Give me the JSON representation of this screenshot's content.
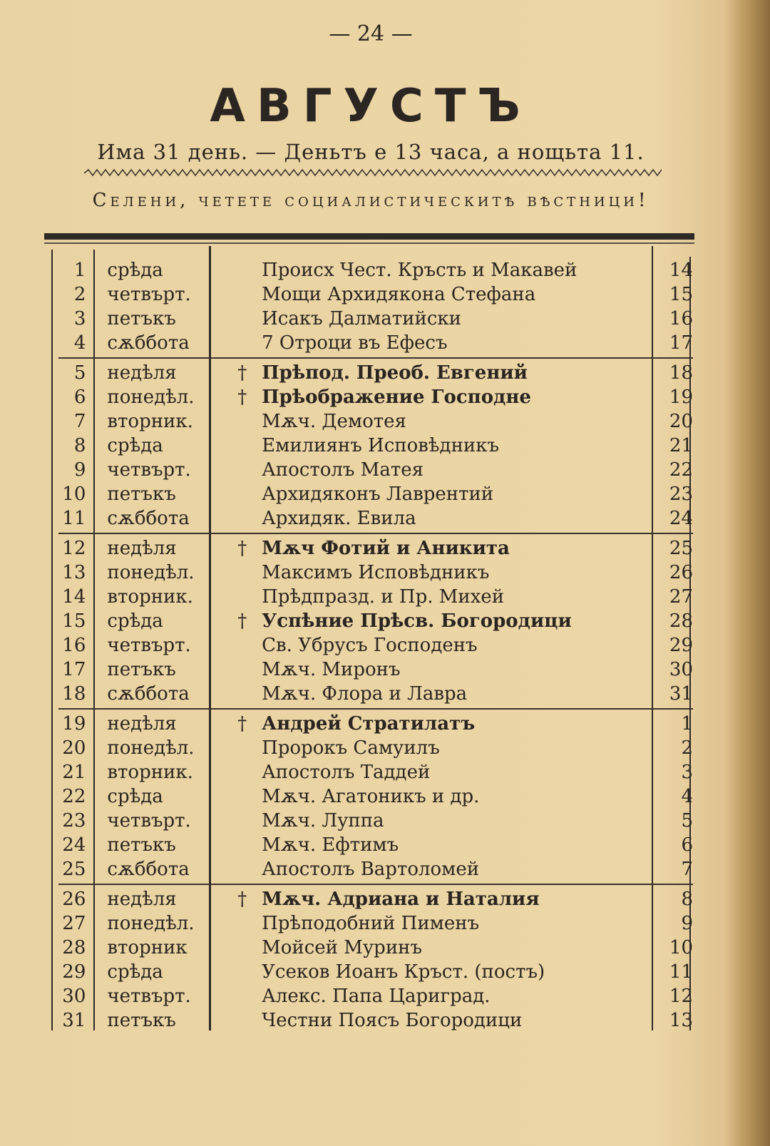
{
  "page_number": "— 24 —",
  "title": "АВГУСТЪ",
  "subtitle": "Има 31 день. — Деньтъ е 13 часа, а нощьта 11.",
  "slogan": "Селени, четете социалистическитѣ вѣстници!",
  "rows": [
    {
      "day": "1",
      "weekday": "срѣда",
      "dagger": "",
      "name": "Происх Чест. Кръсть и Макавей",
      "bold": false,
      "old_day": "14"
    },
    {
      "day": "2",
      "weekday": "четвърт.",
      "dagger": "",
      "name": "Мощи Архидякона Стефана",
      "bold": false,
      "old_day": "15"
    },
    {
      "day": "3",
      "weekday": "петъкъ",
      "dagger": "",
      "name": "Исакъ Далматийски",
      "bold": false,
      "old_day": "16"
    },
    {
      "day": "4",
      "weekday": "сѫббота",
      "dagger": "",
      "name": "7 Отроци въ Ефесъ",
      "bold": false,
      "old_day": "17"
    },
    {
      "day": "5",
      "weekday": "недѣля",
      "dagger": "†",
      "name": "Прѣпод. Преоб. Евгений",
      "bold": true,
      "old_day": "18"
    },
    {
      "day": "6",
      "weekday": "понедѣл.",
      "dagger": "†",
      "name": "Прѣображение Господне",
      "bold": true,
      "old_day": "19"
    },
    {
      "day": "7",
      "weekday": "вторник.",
      "dagger": "",
      "name": "Мѫч. Демотея",
      "bold": false,
      "old_day": "20"
    },
    {
      "day": "8",
      "weekday": "срѣда",
      "dagger": "",
      "name": "Емилиянъ Исповѣдникъ",
      "bold": false,
      "old_day": "21"
    },
    {
      "day": "9",
      "weekday": "четвърт.",
      "dagger": "",
      "name": "Апостолъ Матея",
      "bold": false,
      "old_day": "22"
    },
    {
      "day": "10",
      "weekday": "петъкъ",
      "dagger": "",
      "name": "Архидяконъ Лаврентий",
      "bold": false,
      "old_day": "23"
    },
    {
      "day": "11",
      "weekday": "сѫббота",
      "dagger": "",
      "name": "Архидяк. Евила",
      "bold": false,
      "old_day": "24"
    },
    {
      "day": "12",
      "weekday": "недѣля",
      "dagger": "†",
      "name": "Мѫч Фотий и Аникита",
      "bold": true,
      "old_day": "25"
    },
    {
      "day": "13",
      "weekday": "понедѣл.",
      "dagger": "",
      "name": "Максимъ Исповѣдникъ",
      "bold": false,
      "old_day": "26"
    },
    {
      "day": "14",
      "weekday": "вторник.",
      "dagger": "",
      "name": "Прѣдпразд. и Пр. Михей",
      "bold": false,
      "old_day": "27"
    },
    {
      "day": "15",
      "weekday": "срѣда",
      "dagger": "†",
      "name": "Успѣние Прѣсв. Богородици",
      "bold": true,
      "old_day": "28"
    },
    {
      "day": "16",
      "weekday": "четвърт.",
      "dagger": "",
      "name": "Св. Убрусъ Господенъ",
      "bold": false,
      "old_day": "29"
    },
    {
      "day": "17",
      "weekday": "петъкъ",
      "dagger": "",
      "name": "Мѫч. Миронъ",
      "bold": false,
      "old_day": "30"
    },
    {
      "day": "18",
      "weekday": "сѫббота",
      "dagger": "",
      "name": "Мѫч. Флора и Лавра",
      "bold": false,
      "old_day": "31"
    },
    {
      "day": "19",
      "weekday": "недѣля",
      "dagger": "†",
      "name": "Андрей Стратилатъ",
      "bold": true,
      "old_day": "1"
    },
    {
      "day": "20",
      "weekday": "понедѣл.",
      "dagger": "",
      "name": "Пророкъ Самуилъ",
      "bold": false,
      "old_day": "2"
    },
    {
      "day": "21",
      "weekday": "вторник.",
      "dagger": "",
      "name": "Апостолъ Таддей",
      "bold": false,
      "old_day": "3"
    },
    {
      "day": "22",
      "weekday": "срѣда",
      "dagger": "",
      "name": "Мѫч. Агатоникъ и др.",
      "bold": false,
      "old_day": "4"
    },
    {
      "day": "23",
      "weekday": "четвърт.",
      "dagger": "",
      "name": "Мѫч. Луппа",
      "bold": false,
      "old_day": "5"
    },
    {
      "day": "24",
      "weekday": "петъкъ",
      "dagger": "",
      "name": "Мѫч. Ефтимъ",
      "bold": false,
      "old_day": "6"
    },
    {
      "day": "25",
      "weekday": "сѫббота",
      "dagger": "",
      "name": "Апостолъ Вартоломей",
      "bold": false,
      "old_day": "7"
    },
    {
      "day": "26",
      "weekday": "недѣля",
      "dagger": "†",
      "name": "Мѫч. Адриана и Наталия",
      "bold": true,
      "old_day": "8"
    },
    {
      "day": "27",
      "weekday": "понедѣл.",
      "dagger": "",
      "name": "Прѣподобний Пименъ",
      "bold": false,
      "old_day": "9"
    },
    {
      "day": "28",
      "weekday": "вторник",
      "dagger": "",
      "name": "Мойсей Муринъ",
      "bold": false,
      "old_day": "10"
    },
    {
      "day": "29",
      "weekday": "срѣда",
      "dagger": "",
      "name": "Усеков Иоанъ Кръст. (постъ)",
      "bold": false,
      "old_day": "11"
    },
    {
      "day": "30",
      "weekday": "четвърт.",
      "dagger": "",
      "name": "Алекс. Папа Цариград.",
      "bold": false,
      "old_day": "12"
    },
    {
      "day": "31",
      "weekday": "петъкъ",
      "dagger": "",
      "name": "Честни Поясъ Богородици",
      "bold": false,
      "old_day": "13"
    }
  ]
}
